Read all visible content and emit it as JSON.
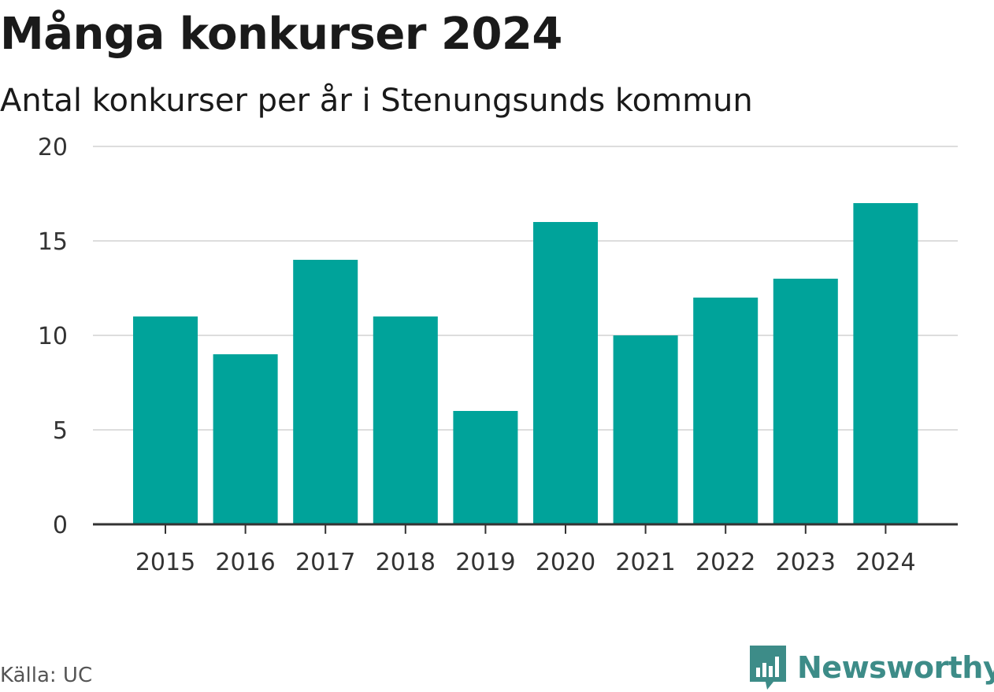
{
  "header": {
    "title": "Många konkurser 2024",
    "subtitle": "Antal konkurser per år i Stenungsunds kommun"
  },
  "footer": {
    "source": "Källa: UC",
    "brand": "Newsworthy",
    "brand_icon": "newsworthy-logo-icon"
  },
  "colors": {
    "bar": "#00a39a",
    "grid": "#dddddd",
    "axis": "#333333",
    "brand": "#3d8c88"
  },
  "chart_data": {
    "type": "bar",
    "title": "Många konkurser 2024",
    "subtitle": "Antal konkurser per år i Stenungsunds kommun",
    "xlabel": "",
    "ylabel": "",
    "categories": [
      "2015",
      "2016",
      "2017",
      "2018",
      "2019",
      "2020",
      "2021",
      "2022",
      "2023",
      "2024"
    ],
    "values": [
      11,
      9,
      14,
      11,
      6,
      16,
      10,
      12,
      13,
      17
    ],
    "ylim": [
      0,
      20
    ],
    "yticks": [
      0,
      5,
      10,
      15,
      20
    ],
    "grid": true,
    "legend": "none"
  }
}
